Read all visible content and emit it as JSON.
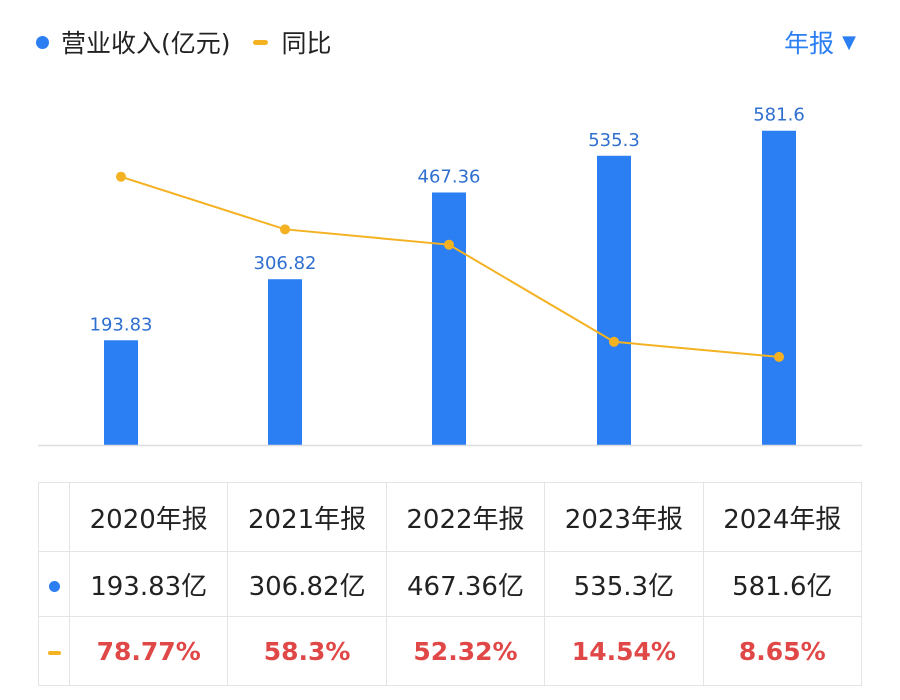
{
  "legend": {
    "revenue_label": "营业收入(亿元)",
    "yoy_label": "同比"
  },
  "period_selector": {
    "label": "年报",
    "caret": "▼"
  },
  "colors": {
    "bar": "#2b7ff3",
    "line": "#f4b223",
    "value_label": "#2f6fcf",
    "percent_text": "#e04747",
    "axis": "#dddddd"
  },
  "chart_data": {
    "type": "bar",
    "categories": [
      "2020年报",
      "2021年报",
      "2022年报",
      "2023年报",
      "2024年报"
    ],
    "series": [
      {
        "name": "营业收入(亿元)",
        "type": "bar",
        "values": [
          193.83,
          306.82,
          467.36,
          535.3,
          581.6
        ],
        "labels": [
          "193.83",
          "306.82",
          "467.36",
          "535.3",
          "581.6"
        ]
      },
      {
        "name": "同比",
        "type": "line",
        "unit": "%",
        "values": [
          78.77,
          58.3,
          52.32,
          14.54,
          8.65
        ]
      }
    ],
    "ylim": [
      0,
      620
    ],
    "yoy_ylim": [
      -12,
      95
    ]
  },
  "table": {
    "headers": [
      "2020年报",
      "2021年报",
      "2022年报",
      "2023年报",
      "2024年报"
    ],
    "revenue_row": [
      "193.83亿",
      "306.82亿",
      "467.36亿",
      "535.3亿",
      "581.6亿"
    ],
    "yoy_row": [
      "78.77%",
      "58.3%",
      "52.32%",
      "14.54%",
      "8.65%"
    ]
  }
}
